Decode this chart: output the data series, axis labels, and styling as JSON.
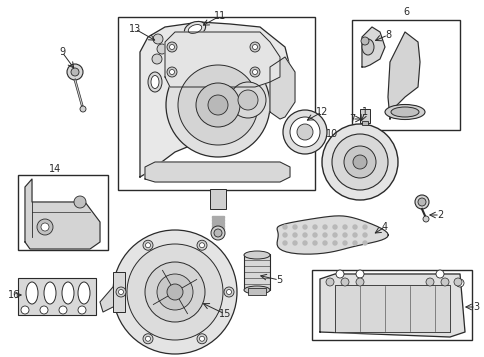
{
  "bg_color": "#ffffff",
  "line_color": "#2a2a2a",
  "fig_width": 4.85,
  "fig_height": 3.57,
  "dpi": 100
}
